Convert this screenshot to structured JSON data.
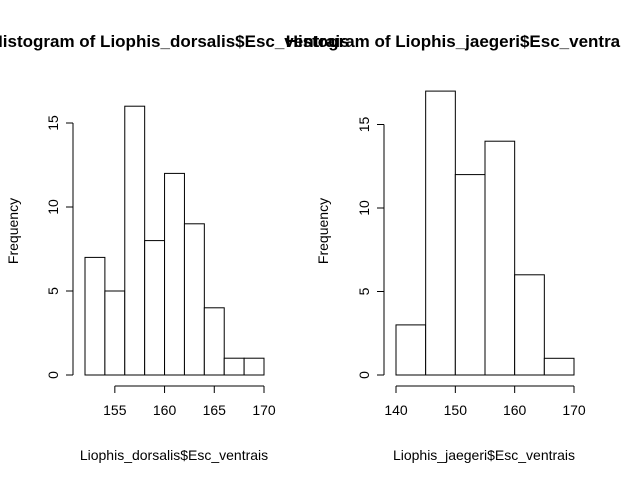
{
  "chart_data": [
    {
      "type": "bar",
      "title": "Histogram of Liophis_dorsalis$Esc_ventrais",
      "xlabel": "Liophis_dorsalis$Esc_ventrais",
      "ylabel": "Frequency",
      "bins": [
        {
          "start": 152,
          "end": 154,
          "count": 7
        },
        {
          "start": 154,
          "end": 156,
          "count": 5
        },
        {
          "start": 156,
          "end": 158,
          "count": 16
        },
        {
          "start": 158,
          "end": 160,
          "count": 8
        },
        {
          "start": 160,
          "end": 162,
          "count": 12
        },
        {
          "start": 162,
          "end": 164,
          "count": 9
        },
        {
          "start": 164,
          "end": 166,
          "count": 4
        },
        {
          "start": 166,
          "end": 168,
          "count": 1
        },
        {
          "start": 168,
          "end": 170,
          "count": 1
        }
      ],
      "xlim": [
        152,
        170
      ],
      "ylim": [
        0,
        16
      ],
      "x_ticks": [
        "155",
        "160",
        "165",
        "170"
      ],
      "y_ticks": [
        "0",
        "5",
        "10",
        "15"
      ],
      "grid": false,
      "legend": "none"
    },
    {
      "type": "bar",
      "title": "Histogram of Liophis_jaegeri$Esc_ventrais",
      "xlabel": "Liophis_jaegeri$Esc_ventrais",
      "ylabel": "Frequency",
      "bins": [
        {
          "start": 140,
          "end": 145,
          "count": 3
        },
        {
          "start": 145,
          "end": 150,
          "count": 17
        },
        {
          "start": 150,
          "end": 155,
          "count": 12
        },
        {
          "start": 155,
          "end": 160,
          "count": 14
        },
        {
          "start": 160,
          "end": 165,
          "count": 6
        },
        {
          "start": 165,
          "end": 170,
          "count": 1
        }
      ],
      "xlim": [
        140,
        170
      ],
      "ylim": [
        0,
        17
      ],
      "x_ticks": [
        "140",
        "150",
        "160",
        "170"
      ],
      "y_ticks": [
        "0",
        "5",
        "10",
        "15"
      ],
      "grid": false,
      "legend": "none"
    }
  ]
}
